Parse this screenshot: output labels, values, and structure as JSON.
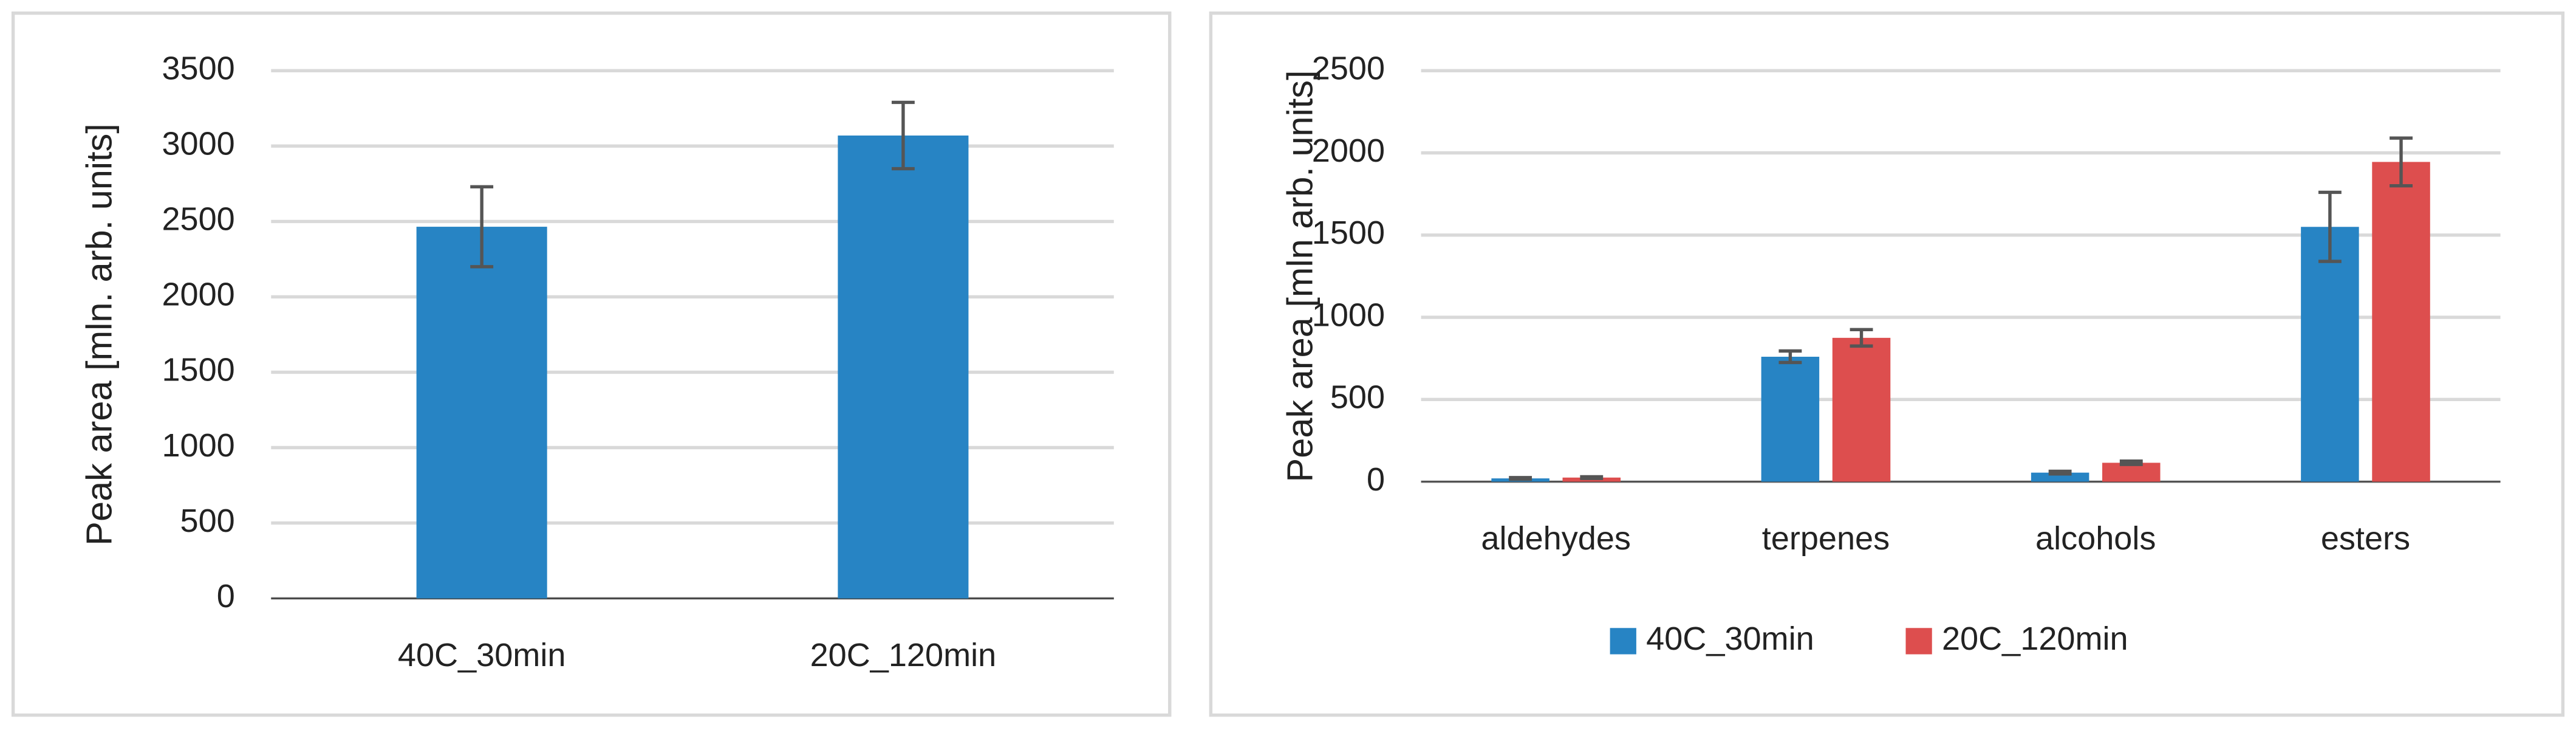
{
  "chart_data": [
    {
      "type": "bar",
      "ylabel": "Peak area [mln. arb. units]",
      "categories": [
        "40C_30min",
        "20C_120min"
      ],
      "values": [
        2465,
        3070
      ],
      "errors": [
        265,
        220
      ],
      "color": "#2784c4",
      "ylim": [
        0,
        3500
      ],
      "yticks": [
        0,
        500,
        1000,
        1500,
        2000,
        2500,
        3000,
        3500
      ],
      "grid": true
    },
    {
      "type": "grouped-bar",
      "ylabel": "Peak area [mln arb. units]",
      "categories": [
        "aldehydes",
        "terpenes",
        "alcohols",
        "esters"
      ],
      "series": [
        {
          "name": "40C_30min",
          "color": "#2784c4",
          "values": [
            20,
            760,
            55,
            1550
          ],
          "errors": [
            5,
            35,
            8,
            210
          ]
        },
        {
          "name": "20C_120min",
          "color": "#dd4e4e",
          "values": [
            25,
            875,
            115,
            1945
          ],
          "errors": [
            5,
            50,
            10,
            145
          ]
        }
      ],
      "ylim": [
        0,
        2500
      ],
      "yticks": [
        0,
        500,
        1000,
        1500,
        2000,
        2500
      ],
      "grid": true,
      "legend": "bottom"
    }
  ]
}
